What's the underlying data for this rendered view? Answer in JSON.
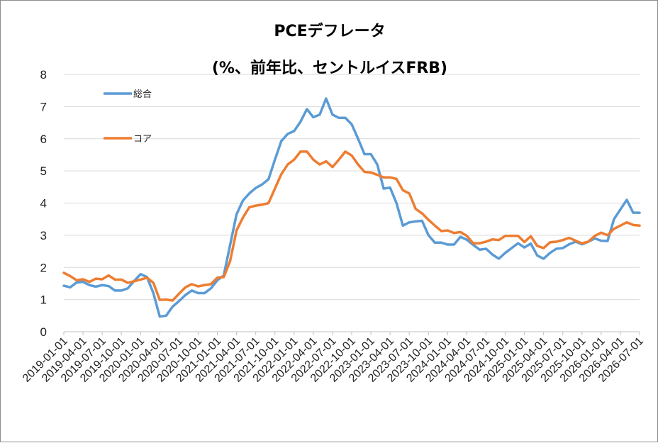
{
  "chart_data": {
    "type": "line",
    "title": "PCEデフレータ",
    "subtitle": "(%、前年比、セントルイスFRB)",
    "ylim": [
      0,
      8
    ],
    "yticks": [
      "0",
      "1",
      "2",
      "3",
      "4",
      "5",
      "6",
      "7",
      "8"
    ],
    "grid": true,
    "legend_position": "top-left",
    "x_start": "2019-01-01",
    "x_end": "2026-07-01",
    "xtick_labels": [
      "2019-01-01",
      "2019-04-01",
      "2019-07-01",
      "2019-10-01",
      "2020-01-01",
      "2020-04-01",
      "2020-07-01",
      "2020-10-01",
      "2021-01-01",
      "2021-04-01",
      "2021-07-01",
      "2021-10-01",
      "2022-01-01",
      "2022-04-01",
      "2022-07-01",
      "2022-10-01",
      "2023-01-01",
      "2023-04-01",
      "2023-07-01",
      "2023-10-01",
      "2024-01-01",
      "2024-04-01",
      "2024-07-01",
      "2024-10-01",
      "2025-01-01",
      "2025-04-01",
      "2025-07-01",
      "2025-10-01",
      "2026-01-01",
      "2026-04-01",
      "2026-07-01"
    ],
    "series": [
      {
        "name": "総合",
        "color": "#5B9BD5",
        "values": [
          1.43,
          1.38,
          1.53,
          1.55,
          1.45,
          1.4,
          1.45,
          1.42,
          1.28,
          1.28,
          1.35,
          1.58,
          1.79,
          1.7,
          1.2,
          0.47,
          0.5,
          0.78,
          0.95,
          1.14,
          1.28,
          1.2,
          1.2,
          1.35,
          1.6,
          1.75,
          2.7,
          3.65,
          4.08,
          4.3,
          4.47,
          4.58,
          4.74,
          5.35,
          5.93,
          6.15,
          6.24,
          6.53,
          6.92,
          6.67,
          6.75,
          7.25,
          6.75,
          6.65,
          6.65,
          6.45,
          6.0,
          5.52,
          5.52,
          5.2,
          4.45,
          4.48,
          4.0,
          3.3,
          3.4,
          3.43,
          3.45,
          3.0,
          2.77,
          2.77,
          2.71,
          2.71,
          2.95,
          2.86,
          2.7,
          2.55,
          2.58,
          2.4,
          2.27,
          2.45,
          2.6,
          2.75,
          2.62,
          2.74,
          2.37,
          2.27,
          2.45,
          2.58,
          2.6,
          2.72,
          2.8,
          2.72,
          2.8,
          2.9,
          2.83,
          2.82,
          3.5,
          3.8,
          4.1,
          3.7,
          3.7
        ]
      },
      {
        "name": "コア",
        "color": "#ED7D31",
        "values": [
          1.83,
          1.73,
          1.6,
          1.63,
          1.55,
          1.65,
          1.63,
          1.75,
          1.62,
          1.62,
          1.52,
          1.57,
          1.62,
          1.68,
          1.52,
          0.99,
          1.0,
          0.97,
          1.18,
          1.38,
          1.48,
          1.41,
          1.45,
          1.48,
          1.68,
          1.7,
          2.2,
          3.15,
          3.55,
          3.87,
          3.92,
          3.95,
          4.0,
          4.45,
          4.9,
          5.2,
          5.35,
          5.6,
          5.6,
          5.35,
          5.2,
          5.3,
          5.12,
          5.35,
          5.6,
          5.48,
          5.2,
          4.97,
          4.95,
          4.88,
          4.8,
          4.8,
          4.75,
          4.4,
          4.3,
          3.82,
          3.68,
          3.48,
          3.3,
          3.13,
          3.15,
          3.07,
          3.1,
          2.98,
          2.75,
          2.75,
          2.8,
          2.87,
          2.85,
          2.98,
          2.98,
          2.98,
          2.79,
          2.97,
          2.67,
          2.6,
          2.78,
          2.8,
          2.85,
          2.92,
          2.83,
          2.75,
          2.8,
          2.98,
          3.08,
          3.0,
          3.2,
          3.3,
          3.4,
          3.32,
          3.3
        ]
      }
    ]
  }
}
